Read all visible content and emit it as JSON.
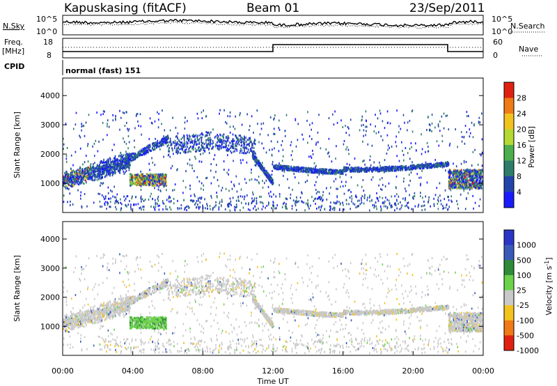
{
  "header": {
    "station": "Kapuskasing (fitACF)",
    "beam": "Beam 01",
    "date": "23/Sep/2011"
  },
  "noise_panel": {
    "left_label": "N.Sky",
    "right_label": "N.Search",
    "left_ticks": [
      "10^5",
      "10^0"
    ],
    "right_ticks": [
      "10^5",
      "10^0"
    ]
  },
  "freq_panel": {
    "left_label_1": "Freq.",
    "left_label_2": "[MHz]",
    "right_label": "Nave",
    "left_ticks": [
      "18",
      "8"
    ],
    "right_ticks": [
      "60",
      "0"
    ]
  },
  "cpid": {
    "label": "CPID",
    "value": "normal (fast) 151"
  },
  "chart_data": [
    {
      "type": "heatmap",
      "name": "power",
      "ylabel": "Slant Range [km]",
      "ylim": [
        0,
        4600
      ],
      "yticks": [
        "1000",
        "2000",
        "3000",
        "4000"
      ],
      "colorbar_label": "Power [dB]",
      "colorbar_ticks": [
        "4",
        "8",
        "12",
        "16",
        "20",
        "24",
        "28"
      ],
      "colors": [
        "#1a1aff",
        "#2244aa",
        "#2e7d6b",
        "#4cae4c",
        "#b5d833",
        "#f2c31f",
        "#f07a16",
        "#e02010"
      ],
      "features": [
        {
          "t_start": 0.0,
          "t_end": 3.8,
          "r_start": 900,
          "r_end": 2000
        },
        {
          "t_start": 3.8,
          "t_end": 6.0,
          "r_start": 900,
          "r_end": 1400
        },
        {
          "t_start": 10.8,
          "t_end": 12.0,
          "r_start": 1000,
          "r_end": 2000
        },
        {
          "t_start": 12.0,
          "t_end": 22.0,
          "r_start": 1300,
          "r_end": 1800
        },
        {
          "t_start": 22.0,
          "t_end": 24.0,
          "r_start": 900,
          "r_end": 1500
        }
      ]
    },
    {
      "type": "heatmap",
      "name": "velocity",
      "ylabel": "Slant Range [km]",
      "ylim": [
        0,
        4600
      ],
      "yticks": [
        "1000",
        "2000",
        "3000",
        "4000"
      ],
      "colorbar_label": "Velocity [m s^-1]",
      "colorbar_ticks": [
        "1000",
        "500",
        "100",
        "25",
        "-25",
        "-100",
        "-500",
        "-1000"
      ],
      "colors": [
        "#2a35c8",
        "#3a5ab8",
        "#2f8a3a",
        "#6bd24b",
        "#c9c9c9",
        "#f2c31f",
        "#f07a16",
        "#e02010"
      ],
      "xlabel": "Time UT",
      "xticks": [
        "00:00",
        "04:00",
        "08:00",
        "12:00",
        "16:00",
        "20:00",
        "00:00"
      ],
      "xlim": [
        0,
        24
      ]
    }
  ]
}
